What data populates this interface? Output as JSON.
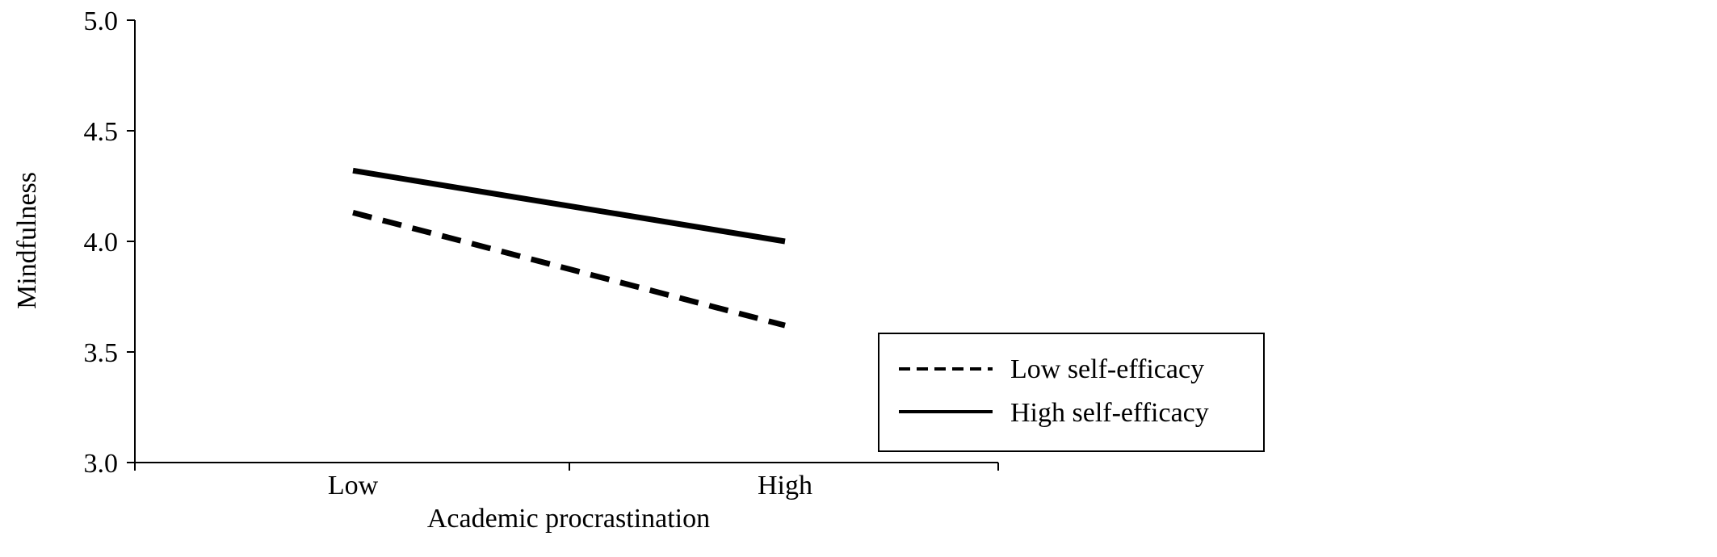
{
  "chart_data": {
    "type": "line",
    "title": "",
    "xlabel": "Academic procrastination",
    "ylabel": "Mindfulness",
    "categories": [
      "Low",
      "High"
    ],
    "ylim": [
      3.0,
      5.0
    ],
    "yticks": [
      "3.0",
      "3.5",
      "4.0",
      "4.5",
      "5.0"
    ],
    "grid": false,
    "legend_position": "lower-right",
    "series": [
      {
        "name": "Low self-efficacy",
        "values": [
          4.13,
          3.62
        ],
        "style": "dashed",
        "color": "#000000"
      },
      {
        "name": "High self-efficacy",
        "values": [
          4.32,
          4.0
        ],
        "style": "solid",
        "color": "#000000"
      }
    ]
  }
}
